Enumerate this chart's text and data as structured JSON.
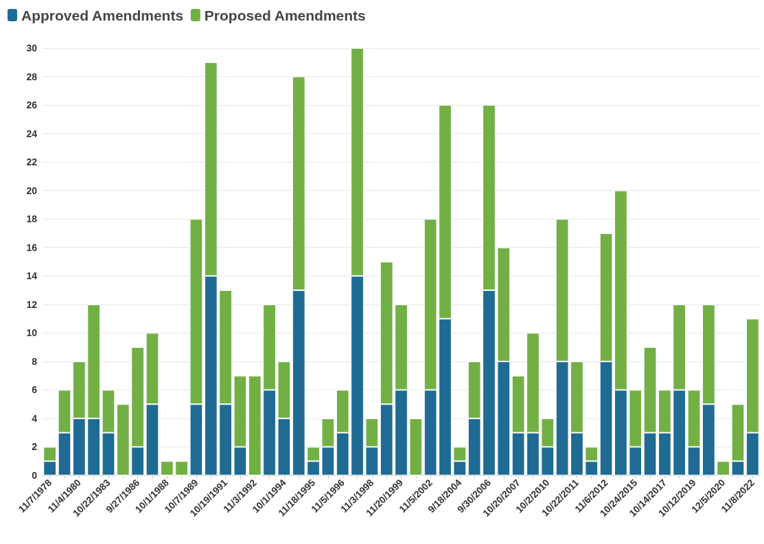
{
  "chart_data": {
    "type": "bar",
    "stacked": true,
    "legend": "top left",
    "grid": "y",
    "categories": [
      "11/7/1978",
      null,
      "11/4/1980",
      null,
      "10/22/1983",
      null,
      "9/27/1986",
      null,
      "10/1/1988",
      null,
      "10/7/1989",
      null,
      "10/19/1991",
      null,
      "11/3/1992",
      null,
      "10/1/1994",
      null,
      "11/18/1995",
      null,
      "11/5/1996",
      null,
      "11/3/1998",
      null,
      "11/20/1999",
      null,
      "11/5/2002",
      null,
      "9/18/2004",
      null,
      "9/30/2006",
      null,
      "10/20/2007",
      null,
      "10/2/2010",
      null,
      "10/22/2011",
      null,
      "11/6/2012",
      null,
      "10/24/2015",
      null,
      "10/14/2017",
      null,
      "10/12/2019",
      null,
      "12/5/2020",
      null,
      "11/8/2022"
    ],
    "ylim": [
      0,
      30
    ],
    "yticks": [
      0,
      2,
      4,
      6,
      8,
      10,
      12,
      14,
      16,
      18,
      20,
      22,
      24,
      26,
      28,
      30
    ],
    "series": [
      {
        "name": "Approved Amendments",
        "color": "#1f6b94",
        "values": [
          1,
          3,
          4,
          4,
          3,
          0,
          2,
          5,
          0,
          0,
          5,
          14,
          5,
          2,
          0,
          6,
          4,
          13,
          1,
          2,
          3,
          14,
          2,
          5,
          6,
          0,
          6,
          11,
          1,
          4,
          13,
          8,
          3,
          3,
          2,
          8,
          3,
          1,
          8,
          6,
          2,
          3,
          3,
          6,
          2,
          5,
          0,
          1,
          3
        ]
      },
      {
        "name": "Proposed Amendments",
        "color": "#72b046",
        "values": [
          1,
          3,
          4,
          8,
          3,
          5,
          7,
          5,
          1,
          1,
          13,
          15,
          8,
          5,
          7,
          6,
          4,
          15,
          1,
          2,
          3,
          16,
          2,
          10,
          6,
          4,
          12,
          15,
          1,
          4,
          13,
          8,
          4,
          7,
          2,
          10,
          5,
          1,
          9,
          14,
          4,
          6,
          3,
          6,
          4,
          7,
          1,
          4,
          8
        ]
      }
    ]
  }
}
